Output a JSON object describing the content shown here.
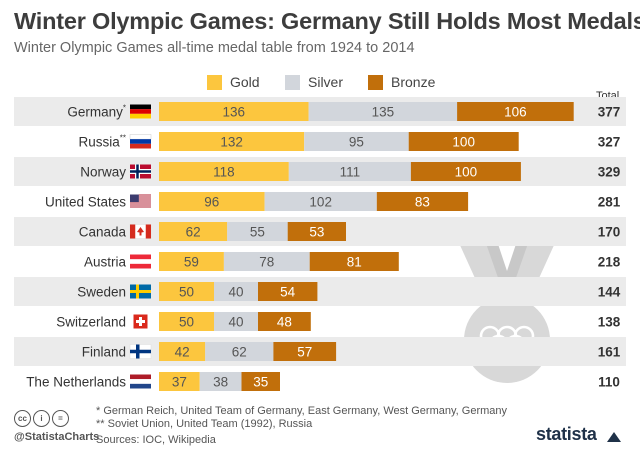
{
  "header": {
    "title": "Winter Olympic Games: Germany Still Holds Most Medals",
    "subtitle": "Winter Olympic Games all-time medal table from 1924 to 2014"
  },
  "colors": {
    "gold": "#fcc63e",
    "silver": "#d2d6dc",
    "bronze": "#c16f0b",
    "row_band": "#ebebeb",
    "label_on_dark": "#ffffff",
    "label_on_light": "#555555"
  },
  "chart_data": {
    "type": "bar",
    "orientation": "horizontal",
    "stacked": true,
    "title": "Winter Olympic Games: Germany Still Holds Most Medals",
    "subtitle": "Winter Olympic Games all-time medal table from 1924 to 2014",
    "categories": [
      "Germany",
      "Russia",
      "Norway",
      "United States",
      "Canada",
      "Austria",
      "Sweden",
      "Switzerland",
      "Finland",
      "The Netherlands"
    ],
    "category_marks": [
      "*",
      "**",
      "",
      "",
      "",
      "",
      "",
      "",
      "",
      ""
    ],
    "series": [
      {
        "name": "Gold",
        "color": "#fcc63e",
        "values": [
          136,
          132,
          118,
          96,
          62,
          59,
          50,
          50,
          42,
          37
        ]
      },
      {
        "name": "Silver",
        "color": "#d2d6dc",
        "values": [
          135,
          95,
          111,
          102,
          55,
          78,
          40,
          40,
          62,
          38
        ]
      },
      {
        "name": "Bronze",
        "color": "#c16f0b",
        "values": [
          106,
          100,
          100,
          83,
          53,
          81,
          54,
          48,
          57,
          35
        ]
      }
    ],
    "totals_header": "Total",
    "totals": [
      377,
      327,
      329,
      281,
      170,
      218,
      144,
      138,
      161,
      110
    ],
    "legend": {
      "entries": [
        "Gold",
        "Silver",
        "Bronze"
      ],
      "placement": "top"
    },
    "grid": false
  },
  "footnotes": {
    "note1": "*   German Reich, United Team of Germany, East Germany, West Germany, Germany",
    "note2": "** Soviet Union, United Team (1992), Russia",
    "sources": "Sources: IOC, Wikipedia"
  },
  "footer": {
    "handle": "@StatistaCharts",
    "brand": "statista",
    "cc_icons": [
      "cc-icon",
      "by-icon",
      "nd-icon"
    ]
  }
}
